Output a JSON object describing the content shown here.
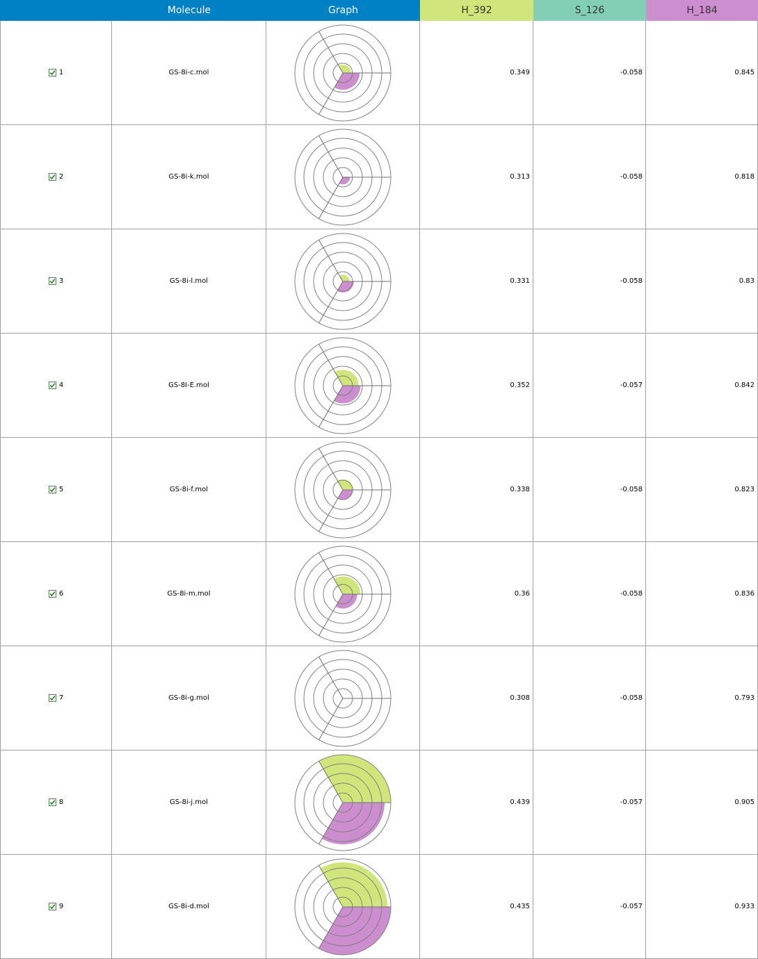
{
  "header": {
    "molecule": "Molecule",
    "graph": "Graph",
    "col_a": "H_392",
    "col_b": "S_126",
    "col_c": "H_184"
  },
  "colors": {
    "header_blue": "#0080c5",
    "col_a": "#d0e67a",
    "col_b": "#82cfb5",
    "col_c": "#cc8ece",
    "fill_a": "#d0e67a",
    "fill_c": "#cc8ece"
  },
  "rows": [
    {
      "idx": "1",
      "molecule": "GS-8i-c.mol",
      "a": "0.349",
      "b": "-0.058",
      "c": "0.845",
      "radar": {
        "a": 0.17,
        "b": 0.0,
        "c": 0.35
      }
    },
    {
      "idx": "2",
      "molecule": "GS-8i-k.mol",
      "a": "0.313",
      "b": "-0.058",
      "c": "0.818",
      "radar": {
        "a": 0.02,
        "b": 0.0,
        "c": 0.15
      }
    },
    {
      "idx": "3",
      "molecule": "GS-8i-l.mol",
      "a": "0.331",
      "b": "-0.058",
      "c": "0.83",
      "radar": {
        "a": 0.14,
        "b": 0.0,
        "c": 0.23
      }
    },
    {
      "idx": "4",
      "molecule": "GS-8I-E.mol",
      "a": "0.352",
      "b": "-0.057",
      "c": "0.842",
      "radar": {
        "a": 0.33,
        "b": 0.0,
        "c": 0.37
      }
    },
    {
      "idx": "5",
      "molecule": "GS-8i-f.mol",
      "a": "0.338",
      "b": "-0.058",
      "c": "0.823",
      "radar": {
        "a": 0.22,
        "b": 0.0,
        "c": 0.2
      }
    },
    {
      "idx": "6",
      "molecule": "GS-8i-m.mol",
      "a": "0.36",
      "b": "-0.058",
      "c": "0.836",
      "radar": {
        "a": 0.37,
        "b": 0.0,
        "c": 0.3
      }
    },
    {
      "idx": "7",
      "molecule": "GS-8i-g.mol",
      "a": "0.308",
      "b": "-0.058",
      "c": "0.793",
      "radar": {
        "a": 0.0,
        "b": 0.0,
        "c": 0.0
      }
    },
    {
      "idx": "8",
      "molecule": "GS-8i-j.mol",
      "a": "0.439",
      "b": "-0.057",
      "c": "0.905",
      "radar": {
        "a": 1.0,
        "b": 0.0,
        "c": 0.87
      }
    },
    {
      "idx": "9",
      "molecule": "GS-8i-d.mol",
      "a": "0.435",
      "b": "-0.057",
      "c": "0.933",
      "radar": {
        "a": 0.93,
        "b": 0.0,
        "c": 1.0
      }
    }
  ]
}
